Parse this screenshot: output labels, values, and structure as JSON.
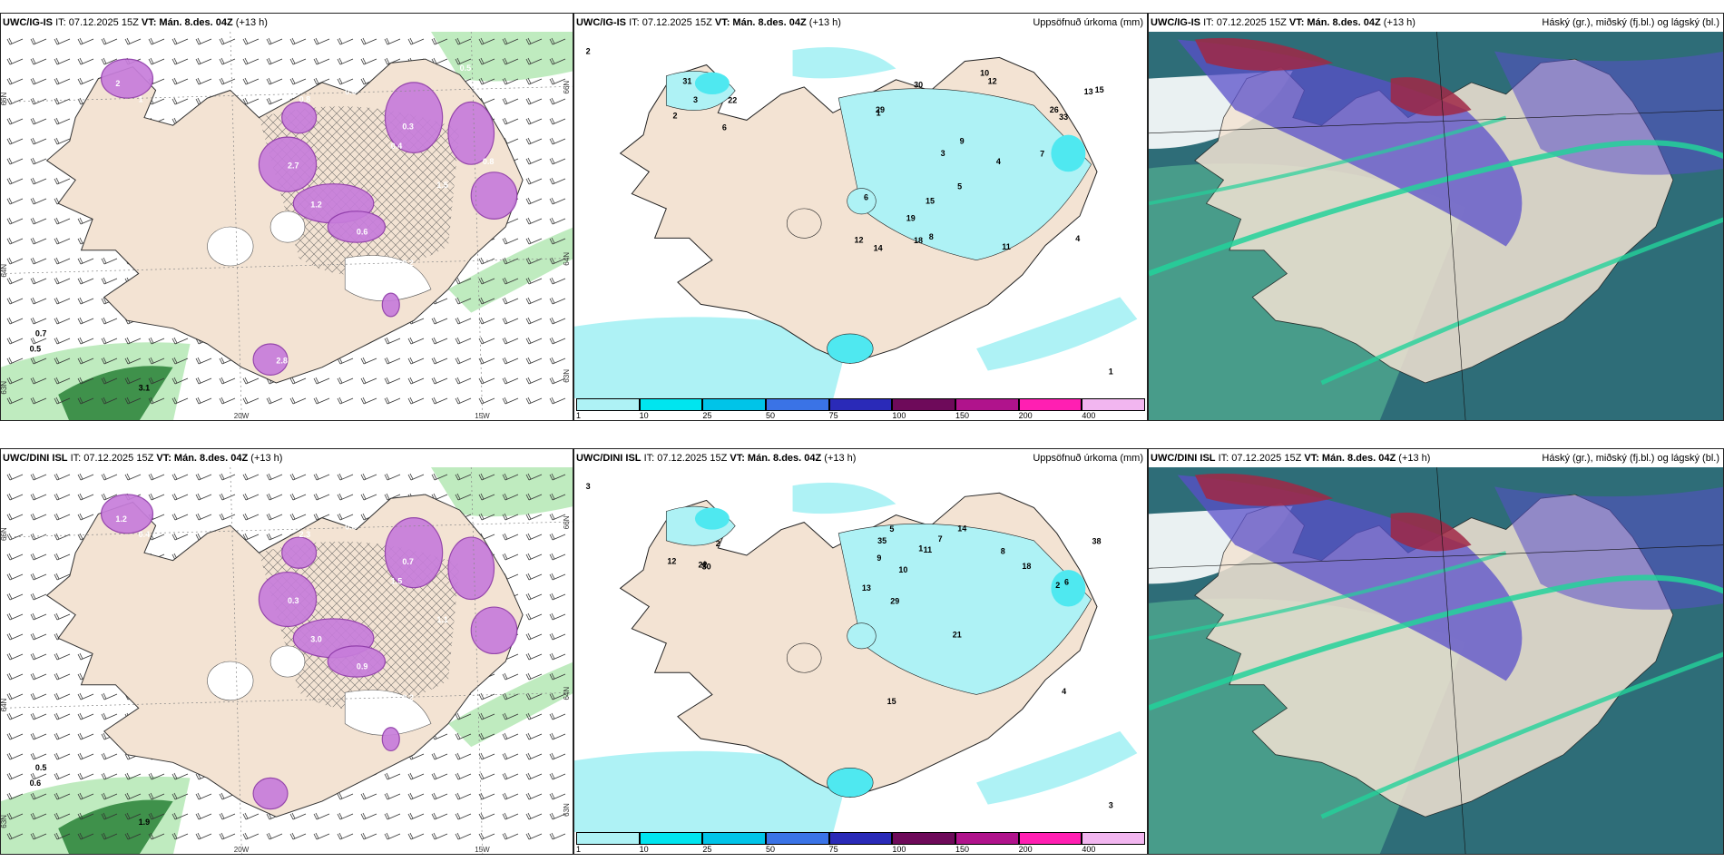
{
  "rows": [
    {
      "model": "UWC/IG-IS",
      "it_label": "IT: 07.12.2025 15Z",
      "vt_label": "VT: Mán. 8.des. 04Z",
      "lead": "(+13 h)",
      "wind_panel": {
        "lat_labels": [
          "66N",
          "64N",
          "63N"
        ],
        "lon_labels": [
          "20W",
          "15W"
        ],
        "values": [
          "0.7",
          "0.5",
          "3.1",
          "2",
          "1",
          "0.8",
          "0.6",
          "2.7",
          "0.4",
          "0.3",
          "1.2",
          "0.6",
          "1.5",
          "0.2",
          "0.8",
          "2.8",
          "0.5"
        ]
      },
      "precip_panel": {
        "title": "Uppsöfnuð úrkoma (mm)",
        "values": [
          "2",
          "31",
          "22",
          "3",
          "6",
          "2",
          "1",
          "4",
          "18",
          "15",
          "13",
          "26",
          "30",
          "29",
          "15",
          "8",
          "12",
          "14",
          "33",
          "10",
          "11",
          "6",
          "3",
          "7",
          "9",
          "5",
          "4",
          "19",
          "12",
          "1"
        ]
      },
      "cloud_panel": {
        "title": "Háský (gr.), miðský (fj.bl.) og lágský (bl.)"
      }
    },
    {
      "model": "UWC/DINI ISL",
      "it_label": "IT: 07.12.2025 15Z",
      "vt_label": "VT: Mán. 8.des. 04Z",
      "lead": "(+13 h)",
      "wind_panel": {
        "lat_labels": [
          "66N",
          "64N",
          "63N"
        ],
        "lon_labels": [
          "20W",
          "15W"
        ],
        "values": [
          "0.5",
          "0.6",
          "1.9",
          "1.2",
          "0.4",
          "2.3",
          "0.8",
          "0.3",
          "1.5",
          "0.7",
          "3.0",
          "0.9",
          "1.1",
          "0.2"
        ]
      },
      "precip_panel": {
        "title": "Uppsöfnuð úrkoma (mm)",
        "values": [
          "3",
          "30",
          "22",
          "12",
          "4",
          "2",
          "10",
          "8",
          "15",
          "21",
          "35",
          "29",
          "38",
          "14",
          "13",
          "9",
          "6",
          "5",
          "11",
          "18",
          "4",
          "2",
          "1",
          "7",
          "3"
        ]
      },
      "cloud_panel": {
        "title": "Háský (gr.), miðský (fj.bl.) og lágský (bl.)"
      }
    }
  ],
  "legend": {
    "ticks": [
      "1",
      "10",
      "25",
      "50",
      "75",
      "100",
      "150",
      "200",
      "400"
    ],
    "colors": [
      "#aef2f5",
      "#00e5ef",
      "#00c4e8",
      "#3a73e6",
      "#2a2ab8",
      "#6e0a5a",
      "#b0138c",
      "#ff1fb2",
      "#f2b6f0"
    ]
  },
  "colors": {
    "land": "#f3e3d3",
    "precip_light": "#aef2f5",
    "precip_mid": "#4fe8f0",
    "wind_precip": "#c77ddb",
    "wind_precip_dark": "#8e3aa8",
    "green_light": "#b8e9b8",
    "green_dark": "#1f7a2e",
    "cloud_ocean": "#2e6d78",
    "cloud_green": "#4fa88e",
    "cloud_bright": "#23d29a",
    "cloud_purple": "#5a4fc9",
    "cloud_red": "#a02845"
  }
}
